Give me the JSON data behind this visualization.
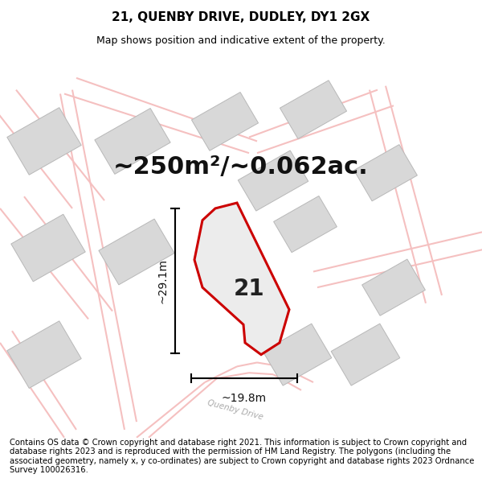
{
  "title": "21, QUENBY DRIVE, DUDLEY, DY1 2GX",
  "subtitle": "Map shows position and indicative extent of the property.",
  "area_label": "~250m²/~0.062ac.",
  "plot_number": "21",
  "width_label": "~19.8m",
  "height_label": "~29.1m",
  "footer": "Contains OS data © Crown copyright and database right 2021. This information is subject to Crown copyright and database rights 2023 and is reproduced with the permission of HM Land Registry. The polygons (including the associated geometry, namely x, y co-ordinates) are subject to Crown copyright and database rights 2023 Ordnance Survey 100026316.",
  "bg_color": "#f2f2f2",
  "plot_fill": "#ececec",
  "plot_edge": "#cc0000",
  "road_color": "#f5c0c0",
  "building_color": "#d8d8d8",
  "building_edge": "#b8b8b8",
  "title_fontsize": 11,
  "subtitle_fontsize": 9,
  "area_fontsize": 22,
  "plot_num_fontsize": 20,
  "dim_fontsize": 10,
  "footer_fontsize": 7.2,
  "road_lw": 1.5,
  "building_lw": 0.7,
  "plot_lw": 2.2
}
